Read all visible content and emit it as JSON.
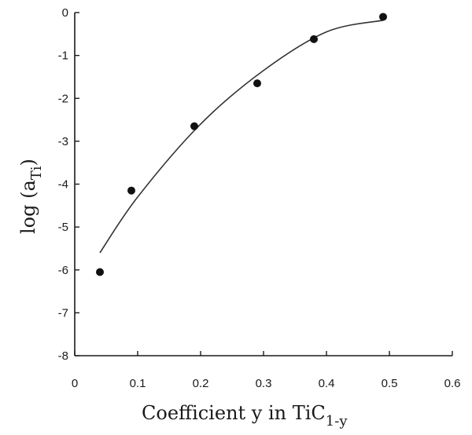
{
  "chart_data": {
    "type": "scatter",
    "title": "",
    "xlabel": "Coefficient y in TiC",
    "xlabel_subscript": "1-y",
    "ylabel": "log (a",
    "ylabel_subscript": "Ti",
    "ylabel_suffix": ")",
    "xlim": [
      0,
      0.6
    ],
    "ylim": [
      -8,
      0
    ],
    "x_ticks": [
      0,
      0.1,
      0.2,
      0.3,
      0.4,
      0.5,
      0.6
    ],
    "x_tick_labels": [
      "0",
      "0.1",
      "0.2",
      "0.3",
      "0.4",
      "0.5",
      "0.6"
    ],
    "y_ticks": [
      0,
      -1,
      -2,
      -3,
      -4,
      -5,
      -6,
      -7,
      -8
    ],
    "y_tick_labels": [
      "0",
      "-1",
      "-2",
      "-3",
      "-4",
      "-5",
      "-6",
      "-7",
      "-8"
    ],
    "grid": false,
    "legend": "none",
    "series": [
      {
        "kind": "points",
        "x": [
          0.04,
          0.09,
          0.19,
          0.29,
          0.38,
          0.49
        ],
        "y": [
          -6.05,
          -4.15,
          -2.65,
          -1.65,
          -0.62,
          -0.1
        ]
      },
      {
        "kind": "fit-curve",
        "x": [
          0.04,
          0.1,
          0.2,
          0.3,
          0.4,
          0.49
        ],
        "y": [
          -5.6,
          -4.3,
          -2.6,
          -1.35,
          -0.45,
          -0.18
        ]
      }
    ],
    "colors": {
      "axis": "#1a1a1a",
      "points": "#111111",
      "curve": "#333333"
    }
  }
}
